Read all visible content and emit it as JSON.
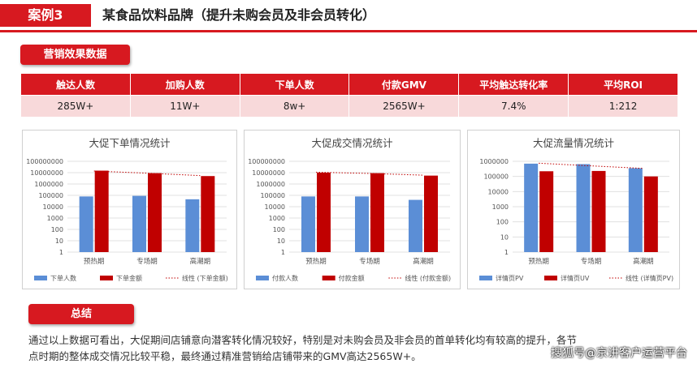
{
  "header": {
    "tag": "案例3",
    "title": "某食品饮料品牌（提升未购会员及非会员转化）"
  },
  "section_title": "营销效果数据",
  "table": {
    "columns": [
      "触达人数",
      "加购人数",
      "下单人数",
      "付款GMV",
      "平均触达转化率",
      "平均ROI"
    ],
    "rows": [
      [
        "285W+",
        "11W+",
        "8w+",
        "2565W+",
        "7.4%",
        "1:212"
      ]
    ]
  },
  "chart_data": [
    {
      "type": "bar",
      "title": "大促下单情况统计",
      "log_scale": true,
      "grid": true,
      "legend": "bottom",
      "categories": [
        "预热期",
        "专场期",
        "高潮期"
      ],
      "ylim": [
        1,
        100000000
      ],
      "yticks": [
        1,
        10,
        100,
        1000,
        10000,
        100000,
        1000000,
        10000000,
        100000000
      ],
      "series": [
        {
          "name": "下单人数",
          "color": "#5b8ed6",
          "values": [
            80000,
            90000,
            45000
          ]
        },
        {
          "name": "下单金额",
          "color": "#c00000",
          "values": [
            15000000,
            9000000,
            5000000
          ]
        },
        {
          "name": "线性 (下单金额)",
          "color": "#c00000",
          "style": "dotted",
          "values": [
            14000000,
            9000000,
            5500000
          ]
        }
      ]
    },
    {
      "type": "bar",
      "title": "大促成交情况统计",
      "log_scale": true,
      "grid": true,
      "legend": "bottom",
      "categories": [
        "预热期",
        "专场期",
        "高潮期"
      ],
      "ylim": [
        1,
        100000000
      ],
      "yticks": [
        1,
        10,
        100,
        1000,
        10000,
        100000,
        1000000,
        10000000,
        100000000
      ],
      "series": [
        {
          "name": "付款人数",
          "color": "#5b8ed6",
          "values": [
            80000,
            80000,
            40000
          ]
        },
        {
          "name": "付款金额",
          "color": "#c00000",
          "values": [
            10000000,
            9000000,
            5500000
          ]
        },
        {
          "name": "线性 (付款金额)",
          "color": "#c00000",
          "style": "dotted",
          "values": [
            11000000,
            8500000,
            6000000
          ]
        }
      ]
    },
    {
      "type": "bar",
      "title": "大促流量情况统计",
      "log_scale": true,
      "grid": true,
      "legend": "bottom",
      "categories": [
        "预热期",
        "专场期",
        "高潮期"
      ],
      "ylim": [
        1,
        1000000
      ],
      "yticks": [
        1,
        10,
        100,
        1000,
        10000,
        100000,
        1000000
      ],
      "series": [
        {
          "name": "详情页PV",
          "color": "#5b8ed6",
          "values": [
            700000,
            650000,
            350000
          ]
        },
        {
          "name": "详情页UV",
          "color": "#c00000",
          "values": [
            220000,
            230000,
            100000
          ]
        },
        {
          "name": "线性 (详情页PV)",
          "color": "#c00000",
          "style": "dotted",
          "values": [
            750000,
            500000,
            340000
          ]
        }
      ]
    }
  ],
  "summary": {
    "title": "总结",
    "lines": [
      "通过以上数据可看出，大促期间店铺意向潜客转化情况较好，特别是对未购会员及非会员的首单转化均有较高的提升，各节",
      "点时期的整体成交情况比较平稳，最终通过精准营销给店铺带来的GMV高达2565W+。"
    ]
  },
  "watermark": "搜狐号@京讲客户运营平台"
}
